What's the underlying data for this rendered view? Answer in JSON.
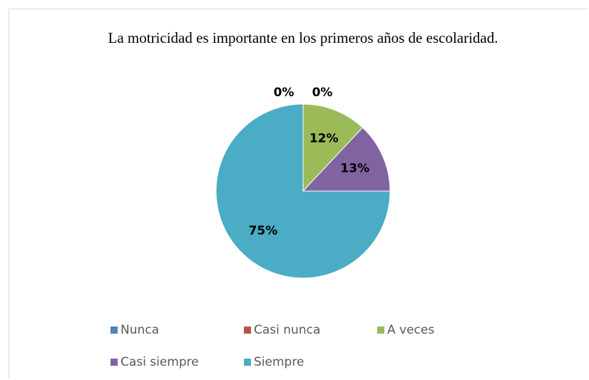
{
  "chart_data": {
    "type": "pie",
    "title": "La motricidad es importante en los primeros años de escolaridad.",
    "categories": [
      "Nunca",
      "Casi nunca",
      "A veces",
      "Casi siempre",
      "Siempre"
    ],
    "values": [
      0,
      0,
      12,
      13,
      75
    ],
    "value_labels": [
      "0%",
      "0%",
      "12%",
      "13%",
      "75%"
    ],
    "colors": [
      "#4f81bd",
      "#c0504d",
      "#9bbb59",
      "#8064a2",
      "#4bacc6"
    ],
    "legend": "bottom"
  }
}
